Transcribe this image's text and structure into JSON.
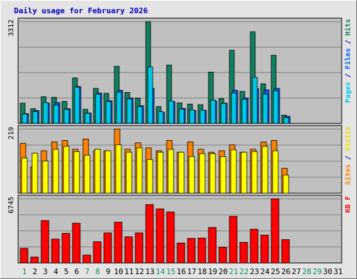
{
  "chart_data": {
    "title": "Daily usage for February 2026",
    "type": "bar",
    "categories": [
      "1",
      "2",
      "3",
      "4",
      "5",
      "6",
      "7",
      "8",
      "9",
      "10",
      "11",
      "12",
      "13",
      "14",
      "15",
      "16",
      "17",
      "18",
      "19",
      "20",
      "21",
      "22",
      "23",
      "24",
      "25",
      "26",
      "27",
      "28",
      "29",
      "30",
      "31"
    ],
    "weekend_days": [
      "1",
      "7",
      "8",
      "14",
      "15",
      "21",
      "22",
      "28",
      "29"
    ],
    "panels": [
      {
        "id": "hits",
        "ymax": 3312,
        "ymax_label": "3312",
        "axis_label_parts": [
          {
            "text": "Pages",
            "color": "#00c8e8"
          },
          {
            "text": " / ",
            "color": "#0000c0"
          },
          {
            "text": "Files",
            "color": "#0060ff"
          },
          {
            "text": " / ",
            "color": "#0000c0"
          },
          {
            "text": "Hits",
            "color": "#108060"
          }
        ],
        "series": [
          {
            "name": "Hits",
            "color": "#108060",
            "values": [
              660,
              480,
              870,
              850,
              720,
              1480,
              460,
              1140,
              980,
              1860,
              1010,
              830,
              3312,
              550,
              1900,
              670,
              630,
              610,
              1670,
              810,
              2380,
              1040,
              2980,
              1290,
              2220,
              270,
              0,
              0,
              0,
              0,
              0
            ]
          },
          {
            "name": "Files",
            "color": "#0060ff",
            "values": [
              320,
              420,
              660,
              680,
              480,
              1200,
              340,
              990,
              740,
              1080,
              830,
              580,
              1140,
              360,
              710,
              490,
              420,
              430,
              730,
              660,
              1080,
              830,
              1130,
              1090,
              1140,
              230,
              0,
              0,
              0,
              0,
              0
            ]
          },
          {
            "name": "Pages",
            "color": "#00c8e8",
            "values": [
              310,
              390,
              680,
              600,
              460,
              1180,
              330,
              950,
              710,
              1020,
              800,
              550,
              1840,
              390,
              730,
              470,
              440,
              430,
              760,
              650,
              990,
              790,
              1500,
              950,
              1060,
              190,
              0,
              0,
              0,
              0,
              0
            ]
          }
        ]
      },
      {
        "id": "visits",
        "ymax": 219,
        "ymax_label": "219",
        "axis_label_parts": [
          {
            "text": "Sites",
            "color": "#ff8000"
          },
          {
            "text": " / ",
            "color": "#0000c0"
          },
          {
            "text": "Visits",
            "color": "#f0e000"
          }
        ],
        "series": [
          {
            "name": "Visits",
            "color": "#ffff00",
            "values": [
              120,
              137,
              110,
              150,
              160,
              142,
              130,
              150,
              145,
              165,
              140,
              155,
              115,
              140,
              150,
              140,
              125,
              135,
              135,
              125,
              148,
              140,
              142,
              160,
              145,
              62,
              0,
              0,
              0,
              0,
              0
            ]
          },
          {
            "name": "Sites",
            "color": "#ff8000",
            "values": [
              170,
              90,
              145,
              175,
              180,
              150,
              185,
              145,
              145,
              219,
              150,
              172,
              155,
              145,
              180,
              140,
              175,
              150,
              140,
              145,
              165,
              140,
              150,
              175,
              180,
              85,
              0,
              0,
              0,
              0,
              0
            ]
          }
        ]
      },
      {
        "id": "kbytes",
        "ymax": 6745,
        "ymax_label": "6745",
        "axis_label_parts": [
          {
            "text": "KB F",
            "color": "#ff0000"
          }
        ],
        "series": [
          {
            "name": "KB F",
            "color": "#ff0000",
            "values": [
              1540,
              620,
              4460,
              2510,
              3110,
              4180,
              830,
              2230,
              3160,
              4280,
              2750,
              3160,
              6140,
              5680,
              5360,
              2100,
              2580,
              2620,
              3730,
              1650,
              4900,
              2160,
              3550,
              2930,
              6745,
              2450,
              0,
              0,
              0,
              0,
              0
            ]
          }
        ]
      }
    ]
  }
}
